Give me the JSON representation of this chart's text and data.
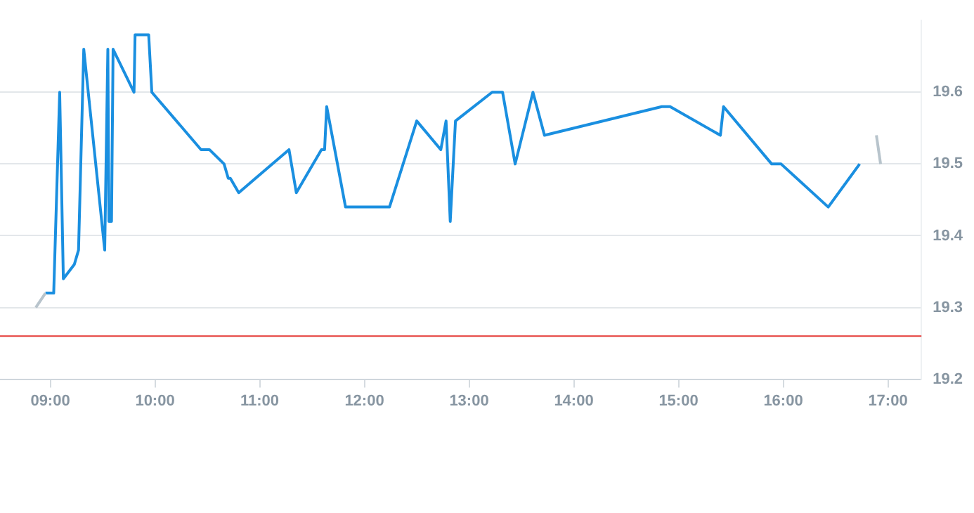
{
  "chart_data": {
    "type": "line",
    "series": [
      {
        "color": "#b8c4cc",
        "x": [
          8.862,
          8.954
        ],
        "values": [
          19.3,
          19.32
        ]
      },
      {
        "color": "#1a8fe0",
        "x": [
          8.954,
          9.033,
          9.09,
          9.125,
          9.23,
          9.27,
          9.32,
          9.52,
          9.55,
          9.56,
          9.585,
          9.6,
          9.8,
          9.81,
          9.94,
          9.97,
          10.44,
          10.52,
          10.66,
          10.7,
          10.72,
          10.8,
          11.28,
          11.35,
          11.59,
          11.62,
          11.64,
          11.82,
          12.24,
          12.5,
          12.73,
          12.78,
          12.82,
          12.87,
          13.22,
          13.32,
          13.44,
          13.61,
          13.72,
          14.84,
          14.92,
          15.4,
          15.43,
          15.89,
          15.98,
          16.43,
          16.73
        ],
        "values": [
          19.32,
          19.32,
          19.6,
          19.34,
          19.36,
          19.38,
          19.66,
          19.38,
          19.66,
          19.42,
          19.42,
          19.66,
          19.6,
          19.68,
          19.68,
          19.6,
          19.52,
          19.52,
          19.5,
          19.48,
          19.48,
          19.46,
          19.52,
          19.46,
          19.52,
          19.52,
          19.58,
          19.44,
          19.44,
          19.56,
          19.52,
          19.56,
          19.42,
          19.56,
          19.6,
          19.6,
          19.5,
          19.6,
          19.54,
          19.58,
          19.58,
          19.54,
          19.58,
          19.5,
          19.5,
          19.44,
          19.5
        ]
      },
      {
        "color": "#b8c4cc",
        "x": [
          16.89,
          16.93
        ],
        "values": [
          19.54,
          19.5
        ]
      }
    ],
    "xlim": [
      8.52,
      17.32
    ],
    "xticks": [
      {
        "value": 9,
        "label": "09:00"
      },
      {
        "value": 10,
        "label": "10:00"
      },
      {
        "value": 11,
        "label": "11:00"
      },
      {
        "value": 12,
        "label": "12:00"
      },
      {
        "value": 13,
        "label": "13:00"
      },
      {
        "value": 14,
        "label": "14:00"
      },
      {
        "value": 15,
        "label": "15:00"
      },
      {
        "value": 16,
        "label": "16:00"
      },
      {
        "value": 17,
        "label": "17:00"
      }
    ],
    "ylim": [
      19.2,
      19.7
    ],
    "yticks": [
      {
        "value": 19.2,
        "label": "19.2"
      },
      {
        "value": 19.3,
        "label": "19.3"
      },
      {
        "value": 19.4,
        "label": "19.4"
      },
      {
        "value": 19.5,
        "label": "19.5"
      },
      {
        "value": 19.6,
        "label": "19.6"
      }
    ],
    "ref_lines": [
      {
        "axis": "y",
        "value": 19.26,
        "color": "#e53935"
      }
    ],
    "grid": "y",
    "marker": "none",
    "line_style": "solid",
    "legend": false
  }
}
